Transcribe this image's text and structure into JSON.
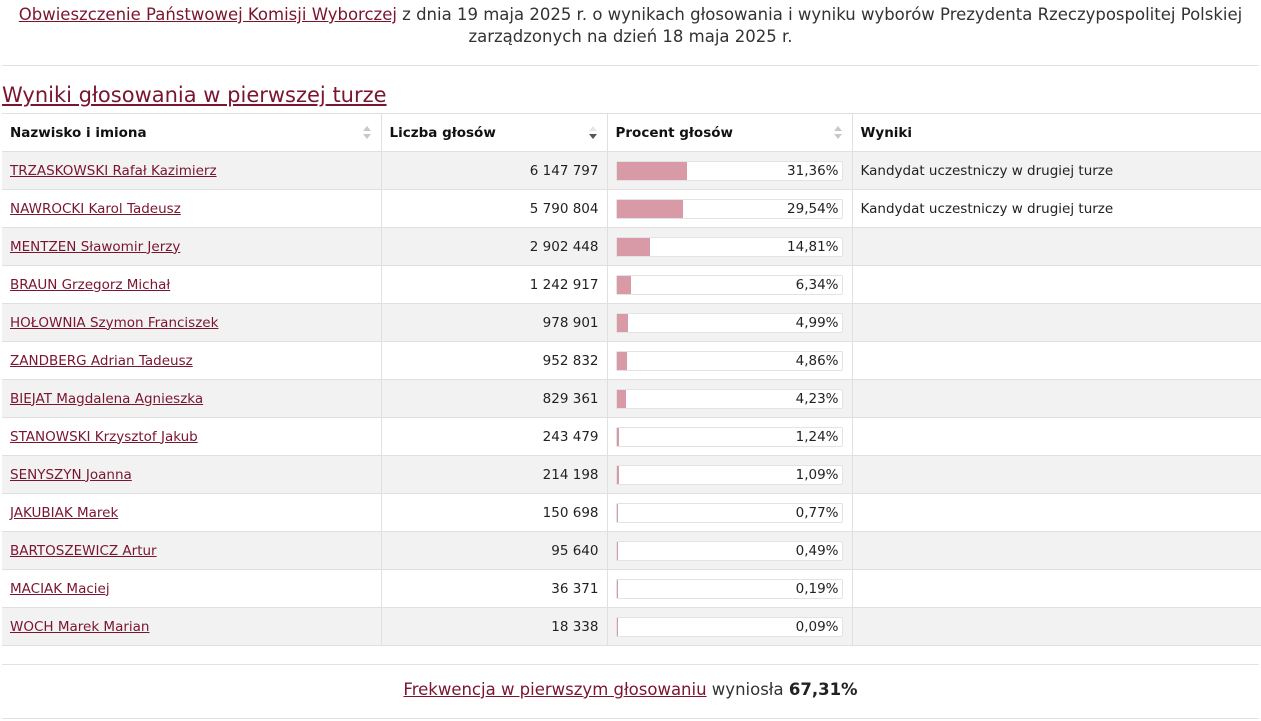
{
  "notice": {
    "link_text": "Obwieszczenie Państwowej Komisji Wyborczej",
    "text_line1": " z dnia 19 maja 2025 r. o wynikach głosowania i wyniku wyborów Prezydenta Rzeczypospolitej Polskiej",
    "text_line2": "zarządzonych na dzień 18 maja 2025 r."
  },
  "section_title": "Wyniki głosowania w pierwszej turze",
  "table": {
    "headers": {
      "name": "Nazwisko i imiona",
      "votes": "Liczba głosów",
      "percent": "Procent głosów",
      "result": "Wyniki"
    },
    "sorted_column": "votes",
    "sort_direction": "descending",
    "rows": [
      {
        "name": "TRZASKOWSKI Rafał Kazimierz",
        "votes": "6 147 797",
        "percent": "31,36%",
        "percent_value": 31.36,
        "result": "Kandydat uczestniczy w drugiej turze"
      },
      {
        "name": "NAWROCKI Karol Tadeusz",
        "votes": "5 790 804",
        "percent": "29,54%",
        "percent_value": 29.54,
        "result": "Kandydat uczestniczy w drugiej turze"
      },
      {
        "name": "MENTZEN Sławomir Jerzy",
        "votes": "2 902 448",
        "percent": "14,81%",
        "percent_value": 14.81,
        "result": ""
      },
      {
        "name": "BRAUN Grzegorz Michał",
        "votes": "1 242 917",
        "percent": "6,34%",
        "percent_value": 6.34,
        "result": ""
      },
      {
        "name": "HOŁOWNIA Szymon Franciszek",
        "votes": "978 901",
        "percent": "4,99%",
        "percent_value": 4.99,
        "result": ""
      },
      {
        "name": "ZANDBERG Adrian Tadeusz",
        "votes": "952 832",
        "percent": "4,86%",
        "percent_value": 4.86,
        "result": ""
      },
      {
        "name": "BIEJAT Magdalena Agnieszka",
        "votes": "829 361",
        "percent": "4,23%",
        "percent_value": 4.23,
        "result": ""
      },
      {
        "name": "STANOWSKI Krzysztof Jakub",
        "votes": "243 479",
        "percent": "1,24%",
        "percent_value": 1.24,
        "result": ""
      },
      {
        "name": "SENYSZYN Joanna",
        "votes": "214 198",
        "percent": "1,09%",
        "percent_value": 1.09,
        "result": ""
      },
      {
        "name": "JAKUBIAK Marek",
        "votes": "150 698",
        "percent": "0,77%",
        "percent_value": 0.77,
        "result": ""
      },
      {
        "name": "BARTOSZEWICZ Artur",
        "votes": "95 640",
        "percent": "0,49%",
        "percent_value": 0.49,
        "result": ""
      },
      {
        "name": "MACIAK Maciej",
        "votes": "36 371",
        "percent": "0,19%",
        "percent_value": 0.19,
        "result": ""
      },
      {
        "name": "WOCH Marek Marian",
        "votes": "18 338",
        "percent": "0,09%",
        "percent_value": 0.09,
        "result": ""
      }
    ]
  },
  "turnout": {
    "link_text": "Frekwencja w pierwszym głosowaniu",
    "text": " wyniosła ",
    "value": "67,31%"
  },
  "colors": {
    "link": "#7a1530",
    "bar_fill": "#d99aa7",
    "row_alt": "#f2f2f2"
  }
}
